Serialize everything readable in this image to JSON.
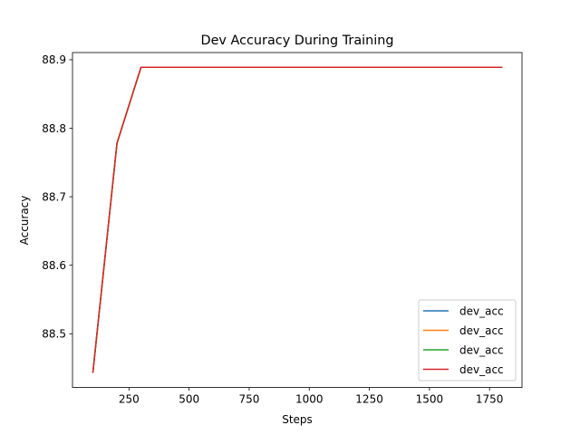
{
  "chart_data": {
    "type": "line",
    "title": "Dev Accuracy During Training",
    "xlabel": "Steps",
    "ylabel": "Accuracy",
    "xlim": [
      15,
      1885
    ],
    "ylim": [
      88.4215,
      88.9105
    ],
    "xticks": [
      250,
      500,
      750,
      1000,
      1250,
      1500,
      1750
    ],
    "xtick_labels": [
      "250",
      "500",
      "750",
      "1000",
      "1250",
      "1500",
      "1750"
    ],
    "yticks": [
      88.5,
      88.6,
      88.7,
      88.8,
      88.9
    ],
    "ytick_labels": [
      "88.5",
      "88.6",
      "88.7",
      "88.8",
      "88.9"
    ],
    "grid": false,
    "legend_position": "lower-right",
    "x": [
      100,
      200,
      300,
      400,
      500,
      600,
      700,
      800,
      900,
      1000,
      1100,
      1200,
      1300,
      1400,
      1500,
      1600,
      1700,
      1800
    ],
    "series": [
      {
        "name": "dev_acc",
        "color": "#1f77b4",
        "values": [
          88.444,
          88.778,
          88.889,
          88.889,
          88.889,
          88.889,
          88.889,
          88.889,
          88.889,
          88.889,
          88.889,
          88.889,
          88.889,
          88.889,
          88.889,
          88.889,
          88.889,
          88.889
        ]
      },
      {
        "name": "dev_acc",
        "color": "#ff7f0e",
        "values": [
          88.444,
          88.778,
          88.889,
          88.889,
          88.889,
          88.889,
          88.889,
          88.889,
          88.889,
          88.889,
          88.889,
          88.889,
          88.889,
          88.889,
          88.889,
          88.889,
          88.889,
          88.889
        ]
      },
      {
        "name": "dev_acc",
        "color": "#2ca02c",
        "values": [
          88.444,
          88.778,
          88.889,
          88.889,
          88.889,
          88.889,
          88.889,
          88.889,
          88.889,
          88.889,
          88.889,
          88.889,
          88.889,
          88.889,
          88.889,
          88.889,
          88.889,
          88.889
        ]
      },
      {
        "name": "dev_acc",
        "color": "#d62728",
        "values": [
          88.444,
          88.778,
          88.889,
          88.889,
          88.889,
          88.889,
          88.889,
          88.889,
          88.889,
          88.889,
          88.889,
          88.889,
          88.889,
          88.889,
          88.889,
          88.889,
          88.889,
          88.889
        ]
      }
    ]
  }
}
